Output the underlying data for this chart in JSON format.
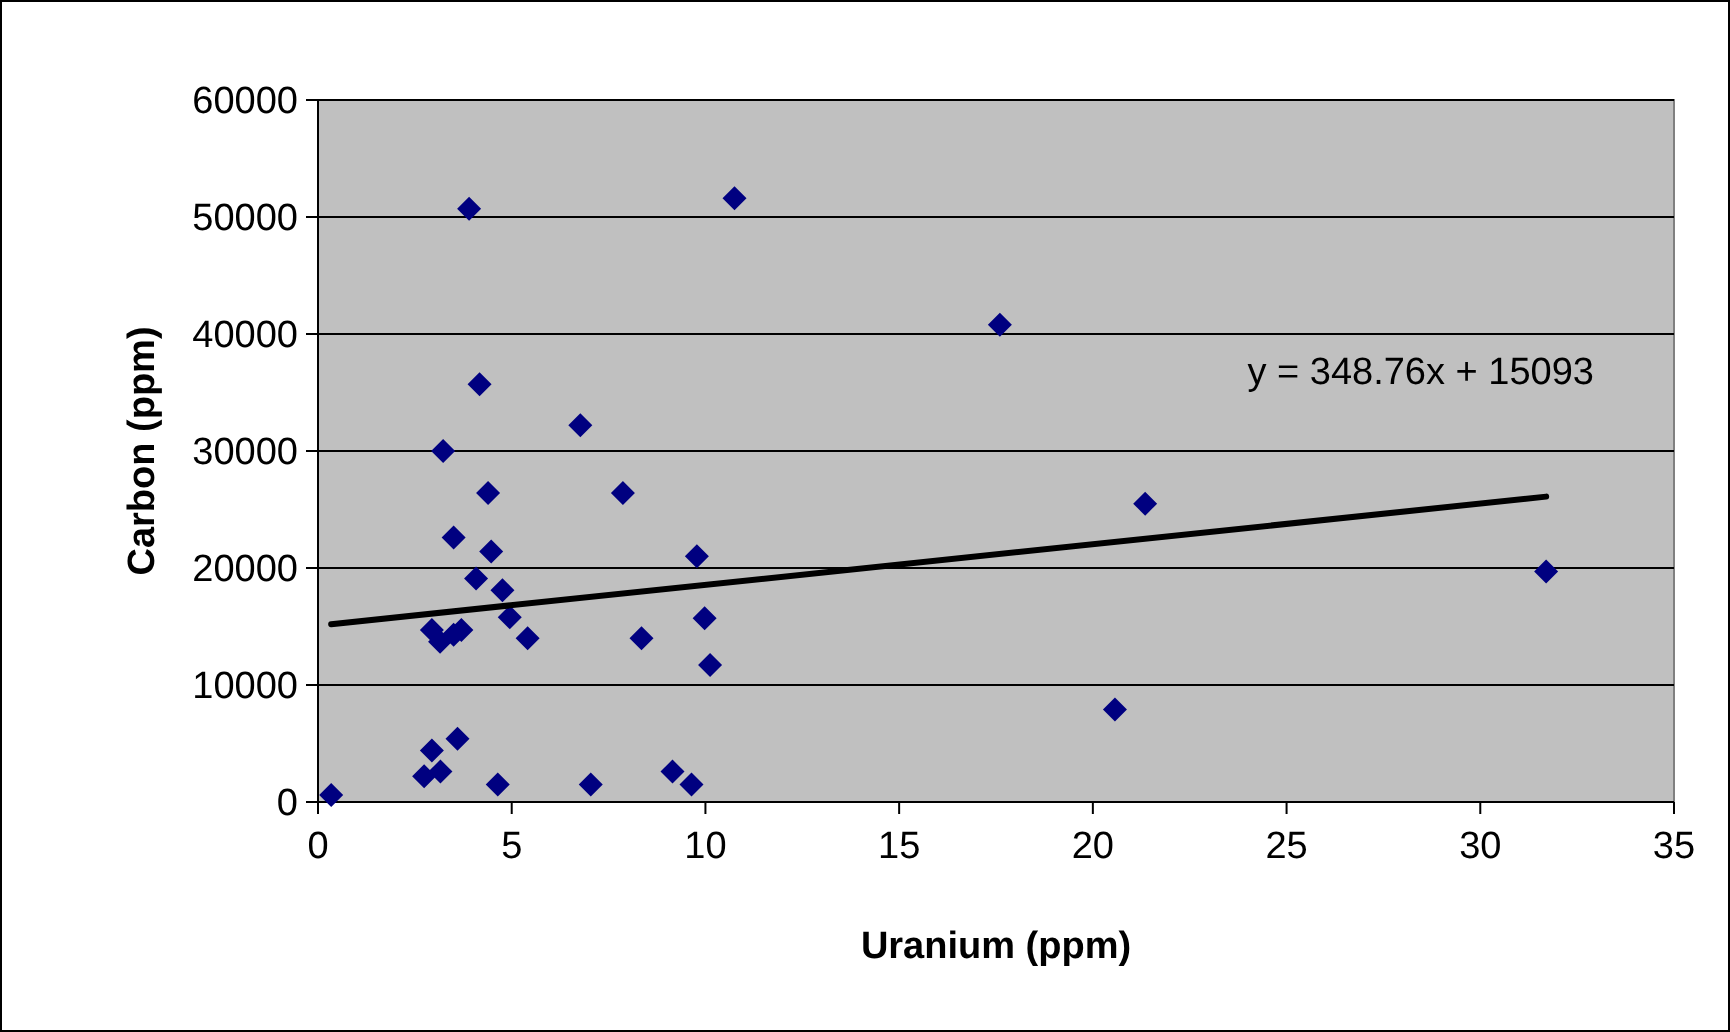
{
  "chart_data": {
    "type": "scatter",
    "xlabel": "Uranium (ppm)",
    "ylabel": "Carbon (ppm)",
    "xlim": [
      0,
      35
    ],
    "ylim": [
      0,
      60000
    ],
    "xticks": [
      0,
      5,
      10,
      15,
      20,
      25,
      30,
      35
    ],
    "yticks": [
      0,
      10000,
      20000,
      30000,
      40000,
      50000,
      60000
    ],
    "grid": "y",
    "marker": "diamond",
    "annotations": [
      "y = 348.76x + 15093"
    ],
    "series": [
      {
        "color": "#000080",
        "x": [
          0.34,
          3.9,
          10.75,
          4.17,
          6.77,
          3.23,
          4.39,
          7.87,
          3.5,
          4.47,
          9.78,
          4.08,
          4.76,
          4.95,
          9.98,
          2.94,
          3.15,
          3.5,
          3.7,
          5.41,
          8.35,
          10.12,
          3.6,
          2.94,
          2.74,
          3.16,
          4.64,
          7.04,
          9.15,
          9.64,
          17.6,
          21.35,
          20.57,
          31.7
        ],
        "values": [
          600,
          50700,
          51600,
          35700,
          32200,
          30000,
          26400,
          26400,
          22600,
          21400,
          21000,
          19100,
          18100,
          15800,
          15700,
          14700,
          13700,
          14300,
          14700,
          14000,
          14000,
          11700,
          5400,
          4400,
          2200,
          2600,
          1500,
          1500,
          2600,
          1500,
          40800,
          25500,
          7900,
          19700
        ]
      },
      {
        "type": "line",
        "color": "#000000",
        "marker": "none",
        "line_style": "solid",
        "x": [
          0.34,
          31.7
        ],
        "values": [
          15200,
          26100
        ]
      }
    ]
  }
}
